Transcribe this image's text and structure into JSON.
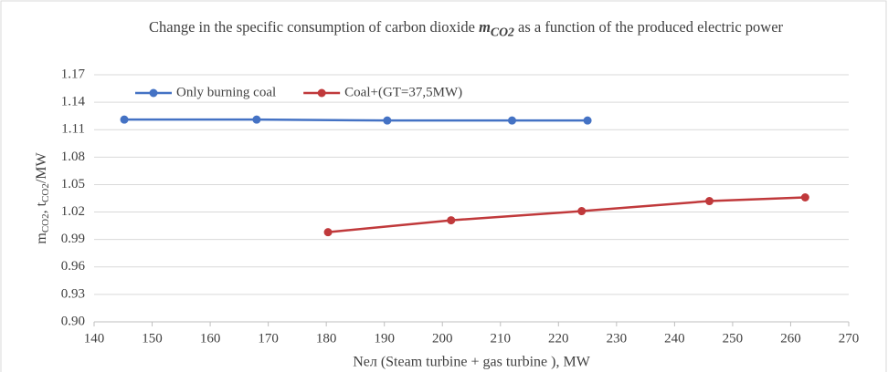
{
  "chart_data": {
    "type": "line",
    "title": [
      "Change in the specific consumption of carbon dioxide ",
      "m",
      "CO2",
      " as a function of the produced electric power"
    ],
    "y_label": [
      "m",
      "CO2",
      ", t",
      "CO2",
      "/MW"
    ],
    "x_label": "Nел (Steam turbine + gas turbine ), MW",
    "xlim": [
      140,
      270
    ],
    "xticks": [
      140,
      150,
      160,
      170,
      180,
      190,
      200,
      210,
      220,
      230,
      240,
      250,
      260,
      270
    ],
    "ylim": [
      0.9,
      1.17
    ],
    "yticks": [
      {
        "value": 0.9,
        "label": "0.90"
      },
      0.93,
      0.96,
      0.99,
      1.02,
      1.05,
      1.08,
      1.11,
      1.14,
      1.17
    ],
    "grid": true,
    "legend": "upper left",
    "series": [
      {
        "name": "Only burning coal",
        "color": "#4472c4",
        "x": [
          145.2,
          168,
          190.5,
          212,
          225
        ],
        "values": [
          1.121,
          1.121,
          1.12,
          1.12,
          1.12
        ]
      },
      {
        "name": "Coal+(GT=37,5MW)",
        "color": "#c0393b",
        "x": [
          180.3,
          201.5,
          224,
          246,
          262.5
        ],
        "values": [
          0.998,
          1.011,
          1.021,
          1.032,
          1.036
        ]
      }
    ]
  }
}
